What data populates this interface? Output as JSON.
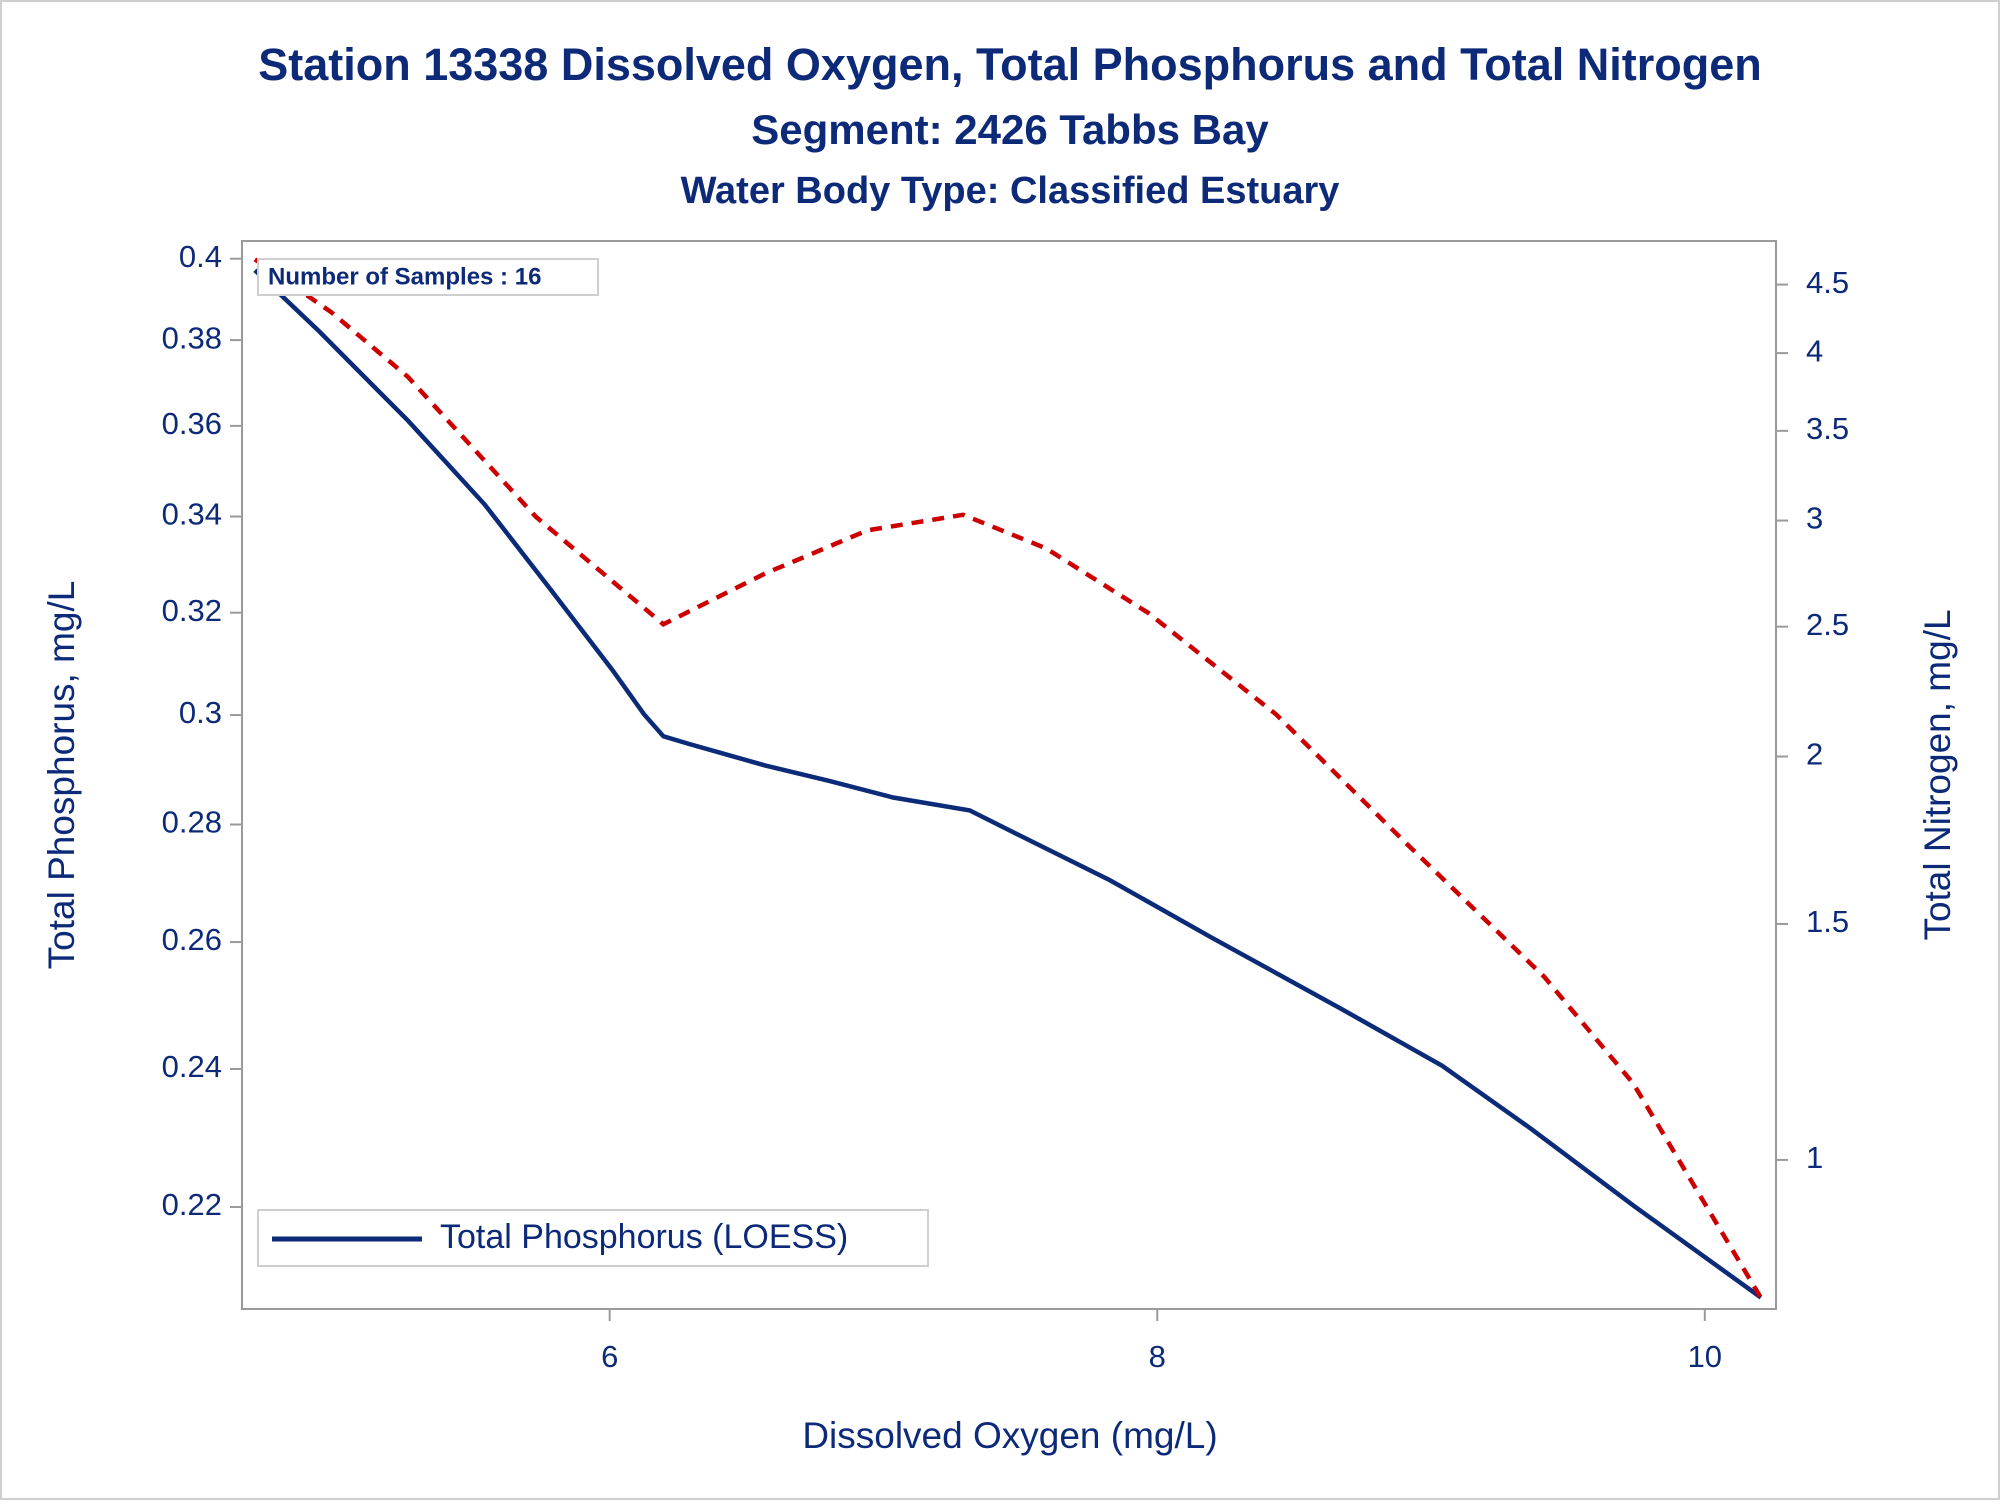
{
  "chart_data": {
    "type": "line",
    "title": "Station 13338  Dissolved Oxygen, Total Phosphorus and Total Nitrogen",
    "subtitle": "Segment: 2426  Tabbs Bay",
    "subtitle2": "Water Body Type: Classified Estuary",
    "x_label": "Dissolved Oxygen (mg/L)",
    "y_label": "Total Phosphorus, mg/L",
    "y2_label": "Total Nitrogen, mg/L",
    "annotation": "Number of Samples : 16",
    "xlim": [
      4.657,
      10.26
    ],
    "xticks": [
      6,
      8,
      10
    ],
    "ylim": [
      0.2063,
      0.4045
    ],
    "yticks": [
      0.22,
      0.24,
      0.26,
      0.28,
      0.3,
      0.32,
      0.34,
      0.36,
      0.38,
      0.4
    ],
    "y_log": true,
    "y2lim": [
      0.774,
      4.85
    ],
    "y2ticks": [
      1,
      1.5,
      2,
      2.5,
      3,
      3.5,
      4,
      4.5
    ],
    "y2_log": true,
    "legend_position": "bottom left",
    "series": [
      {
        "name": "Total Phosphorus (LOESS)",
        "color": "#0b2a78",
        "dash": "solid",
        "x": [
          4.704,
          4.937,
          5.263,
          5.543,
          5.776,
          6.009,
          6.126,
          6.196,
          6.289,
          6.569,
          6.802,
          7.035,
          7.315,
          7.501,
          7.828,
          8.2,
          8.667,
          9.04,
          9.366,
          9.739,
          10.205
        ],
        "values": [
          0.3971,
          0.3822,
          0.3612,
          0.3426,
          0.3253,
          0.3087,
          0.3001,
          0.296,
          0.2946,
          0.2906,
          0.2878,
          0.2848,
          0.2825,
          0.278,
          0.2703,
          0.2607,
          0.2494,
          0.2405,
          0.2311,
          0.2202,
          0.2078
        ]
      },
      {
        "color": "#cc0000",
        "dash": "dashed",
        "axis": "y2",
        "x": [
          4.704,
          4.984,
          5.263,
          5.73,
          6.196,
          6.569,
          6.942,
          7.291,
          7.594,
          7.967,
          8.434,
          8.9,
          9.413,
          9.739,
          10.205
        ],
        "values": [
          4.7,
          4.29,
          3.84,
          3.02,
          2.51,
          2.74,
          2.95,
          3.03,
          2.86,
          2.56,
          2.15,
          1.73,
          1.37,
          1.14,
          0.789
        ]
      }
    ]
  }
}
